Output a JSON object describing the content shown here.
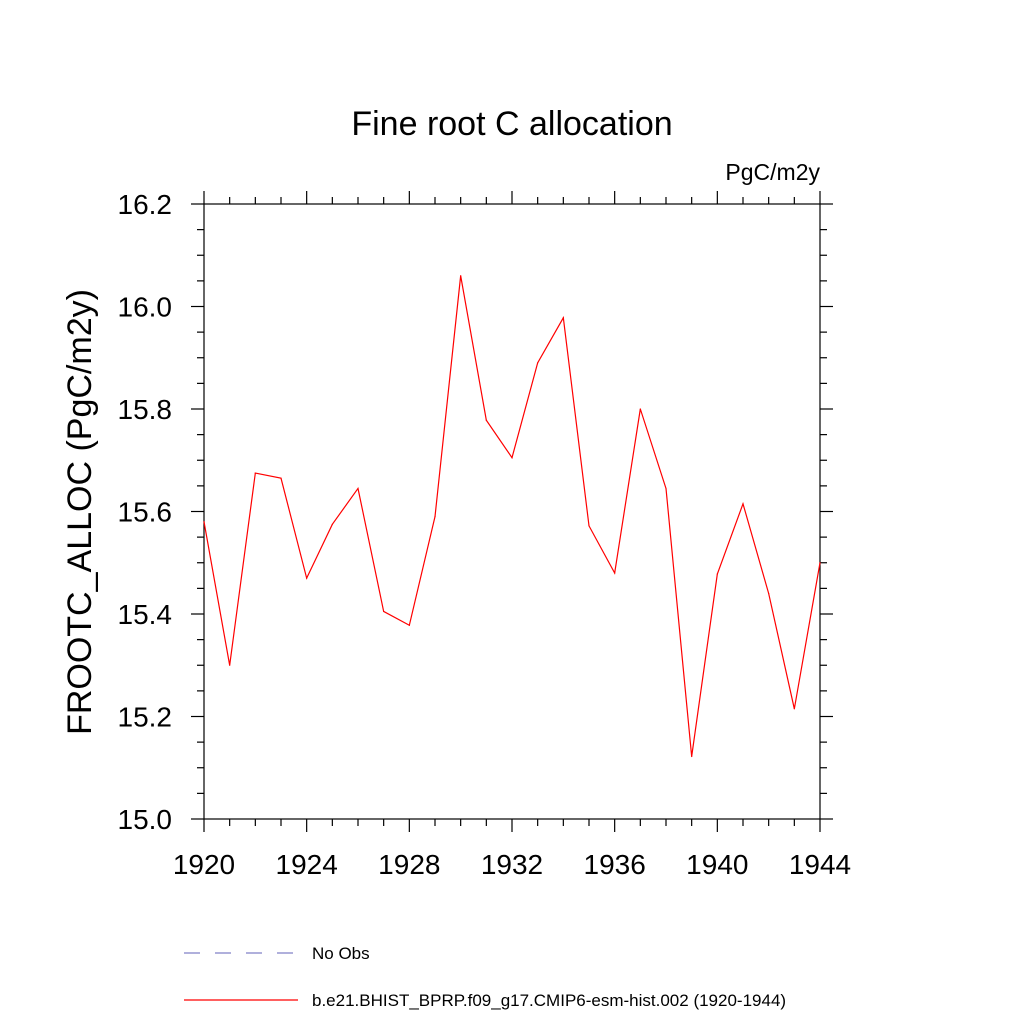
{
  "chart_data": {
    "type": "line",
    "title": "Fine root C allocation",
    "units_label": "PgC/m2y",
    "xlabel": "",
    "ylabel": "FROOTC_ALLOC  (PgC/m2y)",
    "xlim": [
      1920,
      1944
    ],
    "ylim": [
      15.0,
      16.2
    ],
    "x_ticks": [
      1920,
      1924,
      1928,
      1932,
      1936,
      1940,
      1944
    ],
    "x_tick_labels": [
      "1920",
      "1924",
      "1928",
      "1932",
      "1936",
      "1940",
      "1944"
    ],
    "y_ticks": [
      15.0,
      15.2,
      15.4,
      15.6,
      15.8,
      16.0,
      16.2
    ],
    "y_tick_labels": [
      "15.0",
      "15.2",
      "15.4",
      "15.6",
      "15.8",
      "16.0",
      "16.2"
    ],
    "x_minor_step": 1,
    "y_minor_step": 0.05,
    "grid": false,
    "x": [
      1920,
      1921,
      1922,
      1923,
      1924,
      1925,
      1926,
      1927,
      1928,
      1929,
      1930,
      1931,
      1932,
      1933,
      1934,
      1935,
      1936,
      1937,
      1938,
      1939,
      1940,
      1941,
      1942,
      1943,
      1944
    ],
    "series": [
      {
        "name": "b.e21.BHIST_BPRP.f09_g17.CMIP6-esm-hist.002 (1920-1944)",
        "color": "#ff0000",
        "values": [
          15.58,
          15.3,
          15.675,
          15.665,
          15.47,
          15.575,
          15.645,
          15.405,
          15.378,
          15.59,
          16.06,
          15.778,
          15.705,
          15.89,
          15.978,
          15.572,
          15.48,
          15.8,
          15.645,
          15.122,
          15.478,
          15.615,
          15.44,
          15.215,
          15.5
        ]
      }
    ],
    "legend": {
      "placement": "bottom",
      "entries": [
        {
          "label": "No Obs",
          "color": "#8080c8",
          "style": "dashed"
        },
        {
          "label": "b.e21.BHIST_BPRP.f09_g17.CMIP6-esm-hist.002 (1920-1944)",
          "color": "#ff0000",
          "style": "solid"
        }
      ]
    }
  }
}
